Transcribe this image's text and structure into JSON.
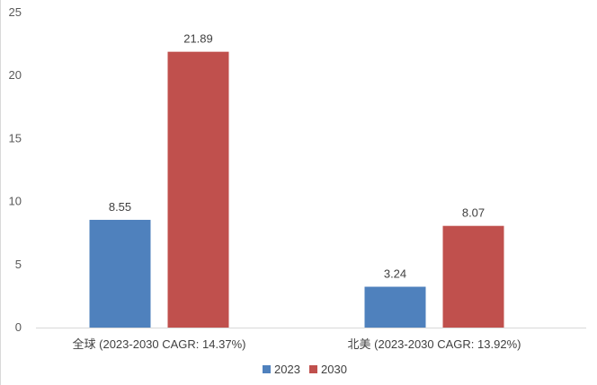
{
  "chart_data": {
    "type": "bar",
    "categories": [
      "全球 (2023-2030 CAGR: 14.37%)",
      "北美 (2023-2030 CAGR: 13.92%)"
    ],
    "series": [
      {
        "name": "2023",
        "values": [
          8.55,
          3.24
        ],
        "color": "#4f81bd"
      },
      {
        "name": "2030",
        "values": [
          21.89,
          8.07
        ],
        "color": "#c0504d"
      }
    ],
    "data_labels": [
      [
        "8.55",
        "3.24"
      ],
      [
        "21.89",
        "8.07"
      ]
    ],
    "ylim": [
      0,
      25
    ],
    "yticks": [
      0,
      5,
      10,
      15,
      20,
      25
    ],
    "ytick_labels": [
      "0",
      "5",
      "10",
      "15",
      "20",
      "25"
    ],
    "title": "",
    "xlabel": "",
    "ylabel": "",
    "grid": false,
    "legend_position": "bottom"
  }
}
